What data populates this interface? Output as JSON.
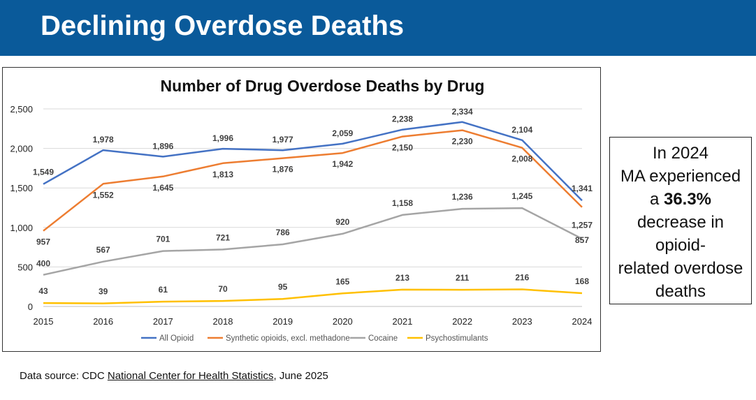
{
  "header": {
    "title": "Declining Overdose Deaths"
  },
  "callout": {
    "line1": "In 2024",
    "line2": "MA experienced",
    "line3_prefix": "a ",
    "line3_pct": "36.3%",
    "line4": "decrease in",
    "line5": "opioid-",
    "line6": "related overdose",
    "line7": "deaths"
  },
  "source": {
    "prefix": "Data source: CDC ",
    "link": "National Center for Health Statistics",
    "suffix": ", June 2025"
  },
  "chart_data": {
    "type": "line",
    "title": "Number of Drug Overdose Deaths by Drug",
    "xlabel": "",
    "ylabel": "",
    "x": [
      2015,
      2016,
      2017,
      2018,
      2019,
      2020,
      2021,
      2022,
      2023,
      2024
    ],
    "ylim": [
      0,
      2500
    ],
    "yticks": [
      0,
      500,
      1000,
      1500,
      2000,
      2500
    ],
    "ytick_labels": [
      "0",
      "500",
      "1,000",
      "1,500",
      "2,000",
      "2,500"
    ],
    "grid": true,
    "legend_position": "bottom",
    "series": [
      {
        "name": "All Opioid",
        "color": "#4472c4",
        "values": [
          1549,
          1978,
          1896,
          1996,
          1977,
          2059,
          2238,
          2334,
          2104,
          1341
        ],
        "labels": [
          "1,549",
          "1,978",
          "1,896",
          "1,996",
          "1,977",
          "2,059",
          "2,238",
          "2,334",
          "2,104",
          "1,341"
        ]
      },
      {
        "name": "Synthetic opioids, excl. methadone",
        "color": "#ed7d31",
        "values": [
          957,
          1552,
          1645,
          1813,
          1876,
          1942,
          2150,
          2230,
          2008,
          1257
        ],
        "labels": [
          "957",
          "1,552",
          "1,645",
          "1,813",
          "1,876",
          "1,942",
          "2,150",
          "2,230",
          "2,008",
          "1,257"
        ]
      },
      {
        "name": "Cocaine",
        "color": "#a5a5a5",
        "values": [
          400,
          567,
          701,
          721,
          786,
          920,
          1158,
          1236,
          1245,
          857
        ],
        "labels": [
          "400",
          "567",
          "701",
          "721",
          "786",
          "920",
          "1,158",
          "1,236",
          "1,245",
          "857"
        ]
      },
      {
        "name": "Psychostimulants",
        "color": "#ffc000",
        "values": [
          43,
          39,
          61,
          70,
          95,
          165,
          213,
          211,
          216,
          168
        ],
        "labels": [
          "43",
          "39",
          "61",
          "70",
          "95",
          "165",
          "213",
          "211",
          "216",
          "168"
        ]
      }
    ]
  }
}
